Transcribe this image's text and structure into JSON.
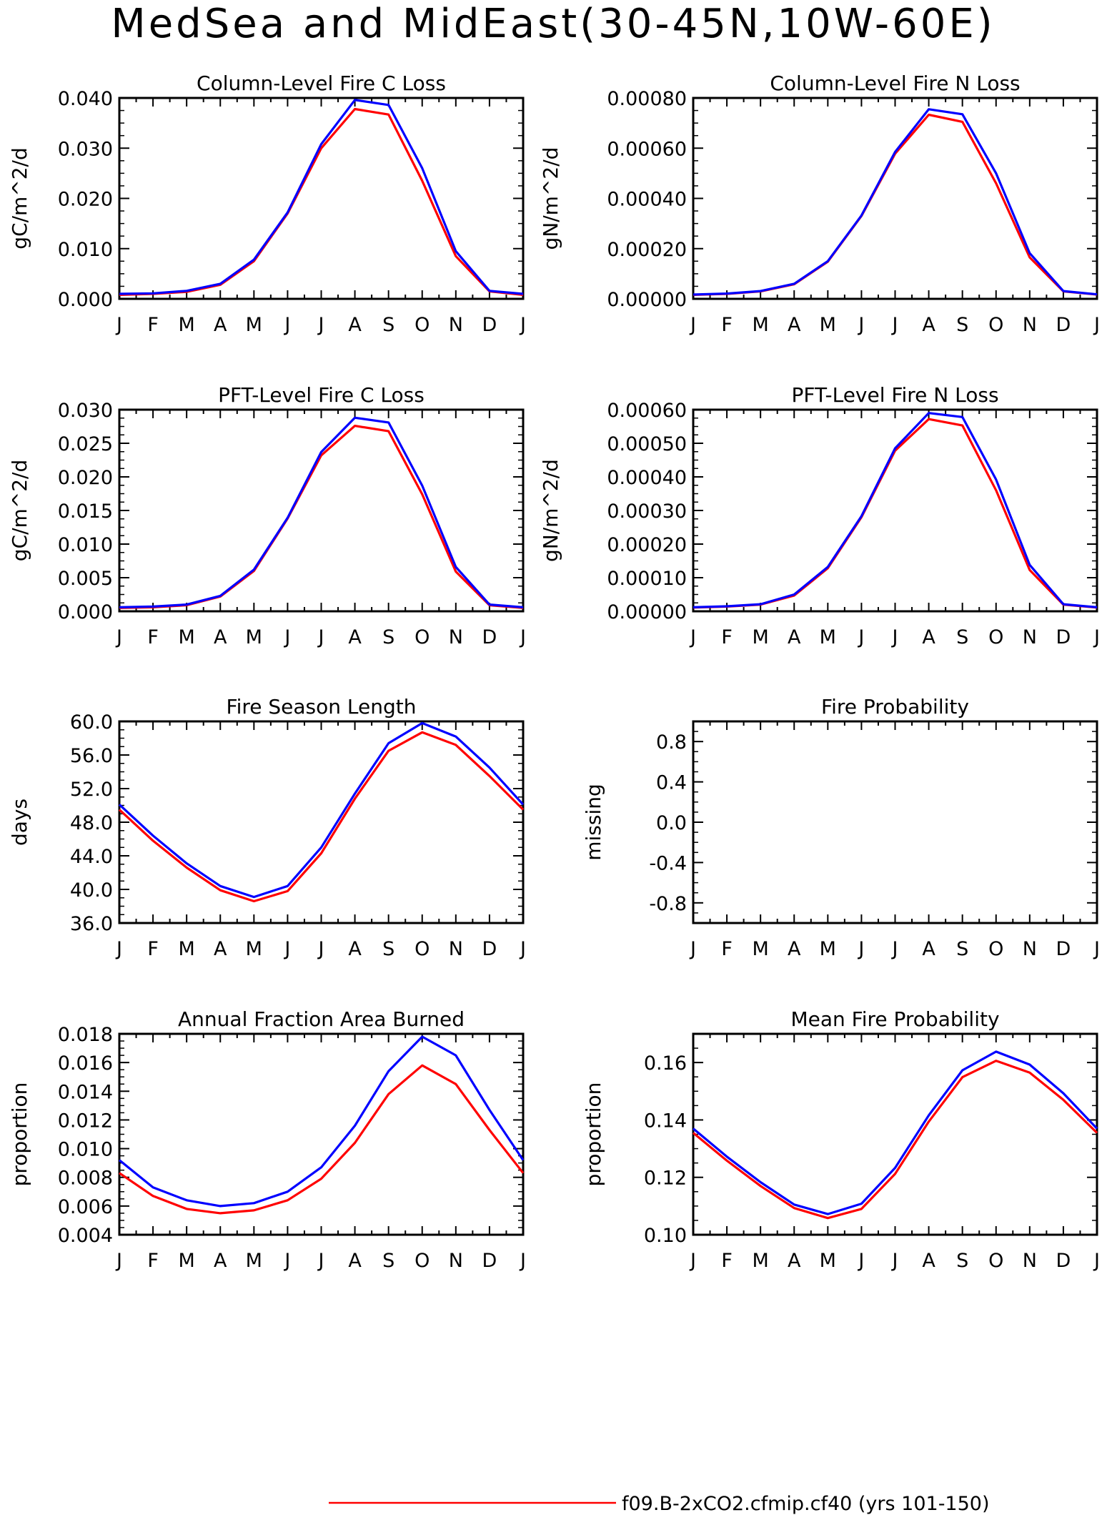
{
  "figure": {
    "title": "MedSea and MidEast(30-45N,10W-60E)",
    "months": [
      "J",
      "F",
      "M",
      "A",
      "M",
      "J",
      "J",
      "A",
      "S",
      "O",
      "N",
      "D",
      "J"
    ]
  },
  "legend": {
    "entries": [
      {
        "label": "f09.B-2xCO2.cfmip.cf40 (yrs 101-150)",
        "color": "#ff0000"
      }
    ]
  },
  "colors": {
    "series_a": "#ff0000",
    "series_b": "#0000ff",
    "axis": "#000000"
  },
  "chart_data": [
    {
      "type": "line",
      "title": "Column-Level Fire C Loss",
      "ylabel": "gC/m^2/d",
      "ylim": [
        0,
        0.04
      ],
      "yticks": [
        "0.000",
        "0.010",
        "0.020",
        "0.030",
        "0.040"
      ],
      "x": [
        "J",
        "F",
        "M",
        "A",
        "M",
        "J",
        "J",
        "A",
        "S",
        "O",
        "N",
        "D",
        "J"
      ],
      "series": [
        {
          "color": "#ff0000",
          "values": [
            0.0008,
            0.001,
            0.0014,
            0.0028,
            0.0075,
            0.017,
            0.03,
            0.0378,
            0.0367,
            0.0235,
            0.0085,
            0.0015,
            0.0008
          ]
        },
        {
          "color": "#0000ff",
          "values": [
            0.001,
            0.0011,
            0.0016,
            0.003,
            0.0078,
            0.0172,
            0.0308,
            0.0396,
            0.0386,
            0.026,
            0.0095,
            0.0016,
            0.001
          ]
        }
      ]
    },
    {
      "type": "line",
      "title": "Column-Level Fire N Loss",
      "ylabel": "gN/m^2/d",
      "ylim": [
        0,
        0.0008
      ],
      "yticks": [
        "0.00000",
        "0.00020",
        "0.00040",
        "0.00060",
        "0.00080"
      ],
      "x": [
        "J",
        "F",
        "M",
        "A",
        "M",
        "J",
        "J",
        "A",
        "S",
        "O",
        "N",
        "D",
        "J"
      ],
      "series": [
        {
          "color": "#ff0000",
          "values": [
            1.6e-05,
            2e-05,
            3e-05,
            5.8e-05,
            0.000148,
            0.00033,
            0.000578,
            0.000733,
            0.000705,
            0.00046,
            0.000165,
            3e-05,
            1.7e-05
          ]
        },
        {
          "color": "#0000ff",
          "values": [
            1.7e-05,
            2.1e-05,
            3.1e-05,
            6e-05,
            0.00015,
            0.000332,
            0.000585,
            0.000755,
            0.000735,
            0.0005,
            0.000182,
            3.1e-05,
            1.8e-05
          ]
        }
      ]
    },
    {
      "type": "line",
      "title": "PFT-Level Fire C Loss",
      "ylabel": "gC/m^2/d",
      "ylim": [
        0,
        0.03
      ],
      "yticks": [
        "0.000",
        "0.005",
        "0.010",
        "0.015",
        "0.020",
        "0.025",
        "0.030"
      ],
      "x": [
        "J",
        "F",
        "M",
        "A",
        "M",
        "J",
        "J",
        "A",
        "S",
        "O",
        "N",
        "D",
        "J"
      ],
      "series": [
        {
          "color": "#ff0000",
          "values": [
            0.0005,
            0.0006,
            0.0009,
            0.0022,
            0.006,
            0.0138,
            0.0232,
            0.0276,
            0.0268,
            0.0174,
            0.0059,
            0.0009,
            0.0005
          ]
        },
        {
          "color": "#0000ff",
          "values": [
            0.0006,
            0.0007,
            0.001,
            0.0023,
            0.0062,
            0.0139,
            0.0237,
            0.0288,
            0.0281,
            0.0187,
            0.0066,
            0.001,
            0.0006
          ]
        }
      ]
    },
    {
      "type": "line",
      "title": "PFT-Level Fire N Loss",
      "ylabel": "gN/m^2/d",
      "ylim": [
        0,
        0.0006
      ],
      "yticks": [
        "0.00000",
        "0.00010",
        "0.00020",
        "0.00030",
        "0.00040",
        "0.00050",
        "0.00060"
      ],
      "x": [
        "J",
        "F",
        "M",
        "A",
        "M",
        "J",
        "J",
        "A",
        "S",
        "O",
        "N",
        "D",
        "J"
      ],
      "series": [
        {
          "color": "#ff0000",
          "values": [
            1.1e-05,
            1.4e-05,
            2e-05,
            4.7e-05,
            0.000128,
            0.00028,
            0.000478,
            0.000572,
            0.000553,
            0.00036,
            0.000123,
            2e-05,
            1.1e-05
          ]
        },
        {
          "color": "#0000ff",
          "values": [
            1.2e-05,
            1.5e-05,
            2.1e-05,
            5e-05,
            0.000132,
            0.000283,
            0.000485,
            0.00059,
            0.000578,
            0.000392,
            0.000138,
            2.1e-05,
            1.2e-05
          ]
        }
      ]
    },
    {
      "type": "line",
      "title": "Fire Season Length",
      "ylabel": "days",
      "ylim": [
        36,
        60
      ],
      "yticks": [
        "36.0",
        "40.0",
        "44.0",
        "48.0",
        "52.0",
        "56.0",
        "60.0"
      ],
      "x": [
        "J",
        "F",
        "M",
        "A",
        "M",
        "J",
        "J",
        "A",
        "S",
        "O",
        "N",
        "D",
        "J"
      ],
      "series": [
        {
          "color": "#ff0000",
          "values": [
            49.5,
            45.8,
            42.6,
            39.9,
            38.6,
            39.8,
            44.3,
            50.8,
            56.5,
            58.7,
            57.2,
            53.5,
            49.5
          ]
        },
        {
          "color": "#0000ff",
          "values": [
            50.1,
            46.4,
            43.1,
            40.4,
            39.1,
            40.4,
            45.0,
            51.4,
            57.4,
            59.8,
            58.2,
            54.5,
            50.1
          ]
        }
      ]
    },
    {
      "type": "line",
      "title": "Fire Probability",
      "ylabel": "missing",
      "ylim": [
        -1,
        1
      ],
      "yticks": [
        "-0.8",
        "-0.4",
        "0.0",
        "0.4",
        "0.8"
      ],
      "x": [
        "J",
        "F",
        "M",
        "A",
        "M",
        "J",
        "J",
        "A",
        "S",
        "O",
        "N",
        "D",
        "J"
      ],
      "series": []
    },
    {
      "type": "line",
      "title": "Annual Fraction Area Burned",
      "ylabel": "proportion",
      "ylim": [
        0.004,
        0.018
      ],
      "yticks": [
        "0.004",
        "0.006",
        "0.008",
        "0.010",
        "0.012",
        "0.014",
        "0.016",
        "0.018"
      ],
      "x": [
        "J",
        "F",
        "M",
        "A",
        "M",
        "J",
        "J",
        "A",
        "S",
        "O",
        "N",
        "D",
        "J"
      ],
      "series": [
        {
          "color": "#ff0000",
          "values": [
            0.0083,
            0.0067,
            0.0058,
            0.0055,
            0.0057,
            0.0064,
            0.0079,
            0.0104,
            0.0138,
            0.0158,
            0.0145,
            0.0113,
            0.0083
          ]
        },
        {
          "color": "#0000ff",
          "values": [
            0.0092,
            0.0073,
            0.0064,
            0.006,
            0.0062,
            0.007,
            0.0087,
            0.0116,
            0.0154,
            0.0178,
            0.0165,
            0.0127,
            0.0092
          ]
        }
      ]
    },
    {
      "type": "line",
      "title": "Mean Fire Probability",
      "ylabel": "proportion",
      "ylim": [
        0.1,
        0.17
      ],
      "yticks": [
        "0.10",
        "0.12",
        "0.14",
        "0.16"
      ],
      "x": [
        "J",
        "F",
        "M",
        "A",
        "M",
        "J",
        "J",
        "A",
        "S",
        "O",
        "N",
        "D",
        "J"
      ],
      "series": [
        {
          "color": "#ff0000",
          "values": [
            0.1355,
            0.1258,
            0.117,
            0.1093,
            0.1058,
            0.109,
            0.1212,
            0.1394,
            0.1549,
            0.1606,
            0.1565,
            0.147,
            0.1355
          ]
        },
        {
          "color": "#0000ff",
          "values": [
            0.137,
            0.1272,
            0.1183,
            0.1105,
            0.1072,
            0.1108,
            0.1233,
            0.1416,
            0.1573,
            0.1638,
            0.1593,
            0.1493,
            0.137
          ]
        }
      ]
    }
  ]
}
